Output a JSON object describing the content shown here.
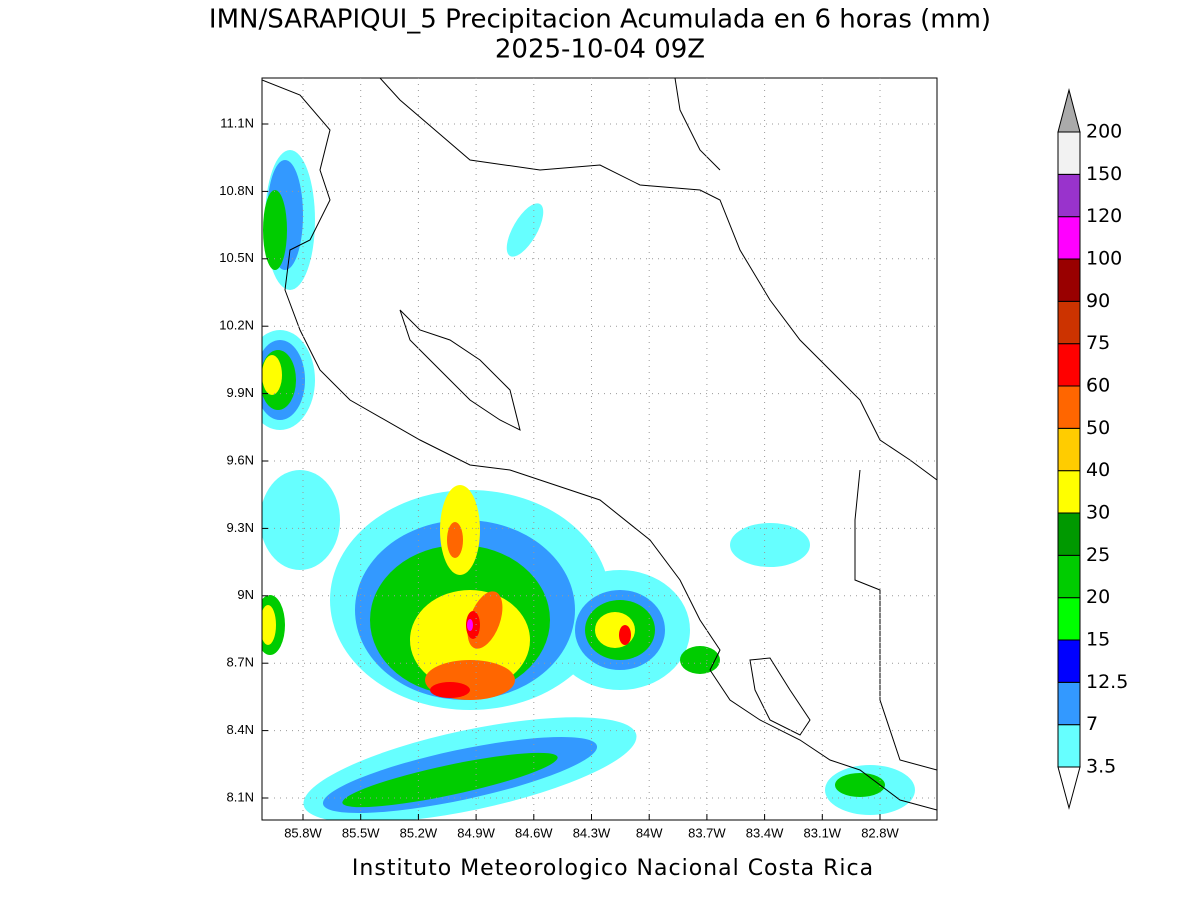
{
  "title": "IMN/SARAPIQUI_5 Precipitacion Acumulada en 6 horas (mm)",
  "subtitle": "2025-10-04 09Z",
  "map": {
    "lat_labels": [
      "11.1N",
      "10.8N",
      "10.5N",
      "10.2N",
      "9.9N",
      "9.6N",
      "9.3N",
      "9N",
      "8.7N",
      "8.4N",
      "8.1N"
    ],
    "lon_labels": [
      "85.8W",
      "85.5W",
      "85.2W",
      "84.9W",
      "84.6W",
      "84.3W",
      "84W",
      "83.7W",
      "83.4W",
      "83.1W",
      "82.8W"
    ]
  },
  "colorbar": {
    "levels": [
      3.5,
      7,
      12.5,
      15,
      20,
      25,
      30,
      40,
      50,
      60,
      75,
      90,
      100,
      120,
      150,
      200
    ],
    "colors": [
      "#66ffff",
      "#3399ff",
      "#0000ff",
      "#00ff00",
      "#00cc00",
      "#009900",
      "#ffff00",
      "#ffcc00",
      "#ff6600",
      "#ff0000",
      "#cc3300",
      "#990000",
      "#ff00ff",
      "#9933cc",
      "#f2f2f2"
    ],
    "below_color": "#ffffff",
    "above_color": "#aaaaaa"
  },
  "credit": "Instituto Meteorologico Nacional Costa Rica"
}
